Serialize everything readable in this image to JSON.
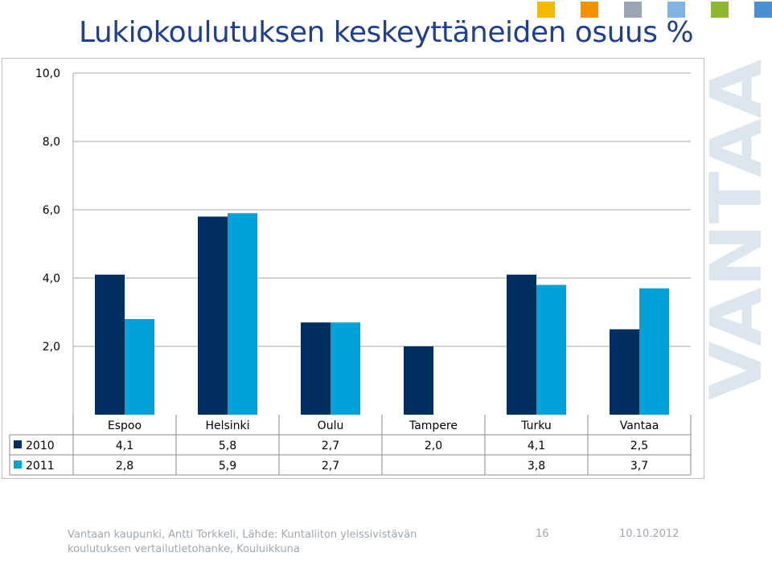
{
  "title": "Lukiokoulutuksen keskeyttäneiden osuus %",
  "watermark_text": "VANTAA",
  "decor_colors": [
    "#f7b800",
    "#f39200",
    "#9aa6b6",
    "#7fb5e0",
    "#8cb832",
    "#4a90d0"
  ],
  "footer": {
    "source_line1": "Vantaan kaupunki, Antti Torkkeli, Lähde: Kuntaliiton yleissivistävän",
    "source_line2": "koulutuksen vertailutietohanke, Kouluikkuna",
    "page_number": "16",
    "date": "10.10.2012"
  },
  "chart_data": {
    "type": "bar",
    "title": "Lukiokoulutuksen keskeyttäneiden osuus %",
    "categories": [
      "Espoo",
      "Helsinki",
      "Oulu",
      "Tampere",
      "Turku",
      "Vantaa"
    ],
    "series": [
      {
        "name": "2010",
        "color": "#002e60",
        "values": [
          4.1,
          5.8,
          2.7,
          2.0,
          4.1,
          2.5
        ],
        "labels": [
          "4,1",
          "5,8",
          "2,7",
          "2,0",
          "4,1",
          "2,5"
        ]
      },
      {
        "name": "2011",
        "color": "#00a3d9",
        "values": [
          2.8,
          5.9,
          2.7,
          null,
          3.8,
          3.7
        ],
        "labels": [
          "2,8",
          "5,9",
          "2,7",
          "",
          "3,8",
          "3,7"
        ]
      }
    ],
    "ylim": [
      0,
      10
    ],
    "yticks": [
      2,
      4,
      6,
      8,
      10
    ],
    "ytick_labels": [
      "2,0",
      "4,0",
      "6,0",
      "8,0",
      "10,0"
    ],
    "grid": true,
    "data_table": true
  }
}
